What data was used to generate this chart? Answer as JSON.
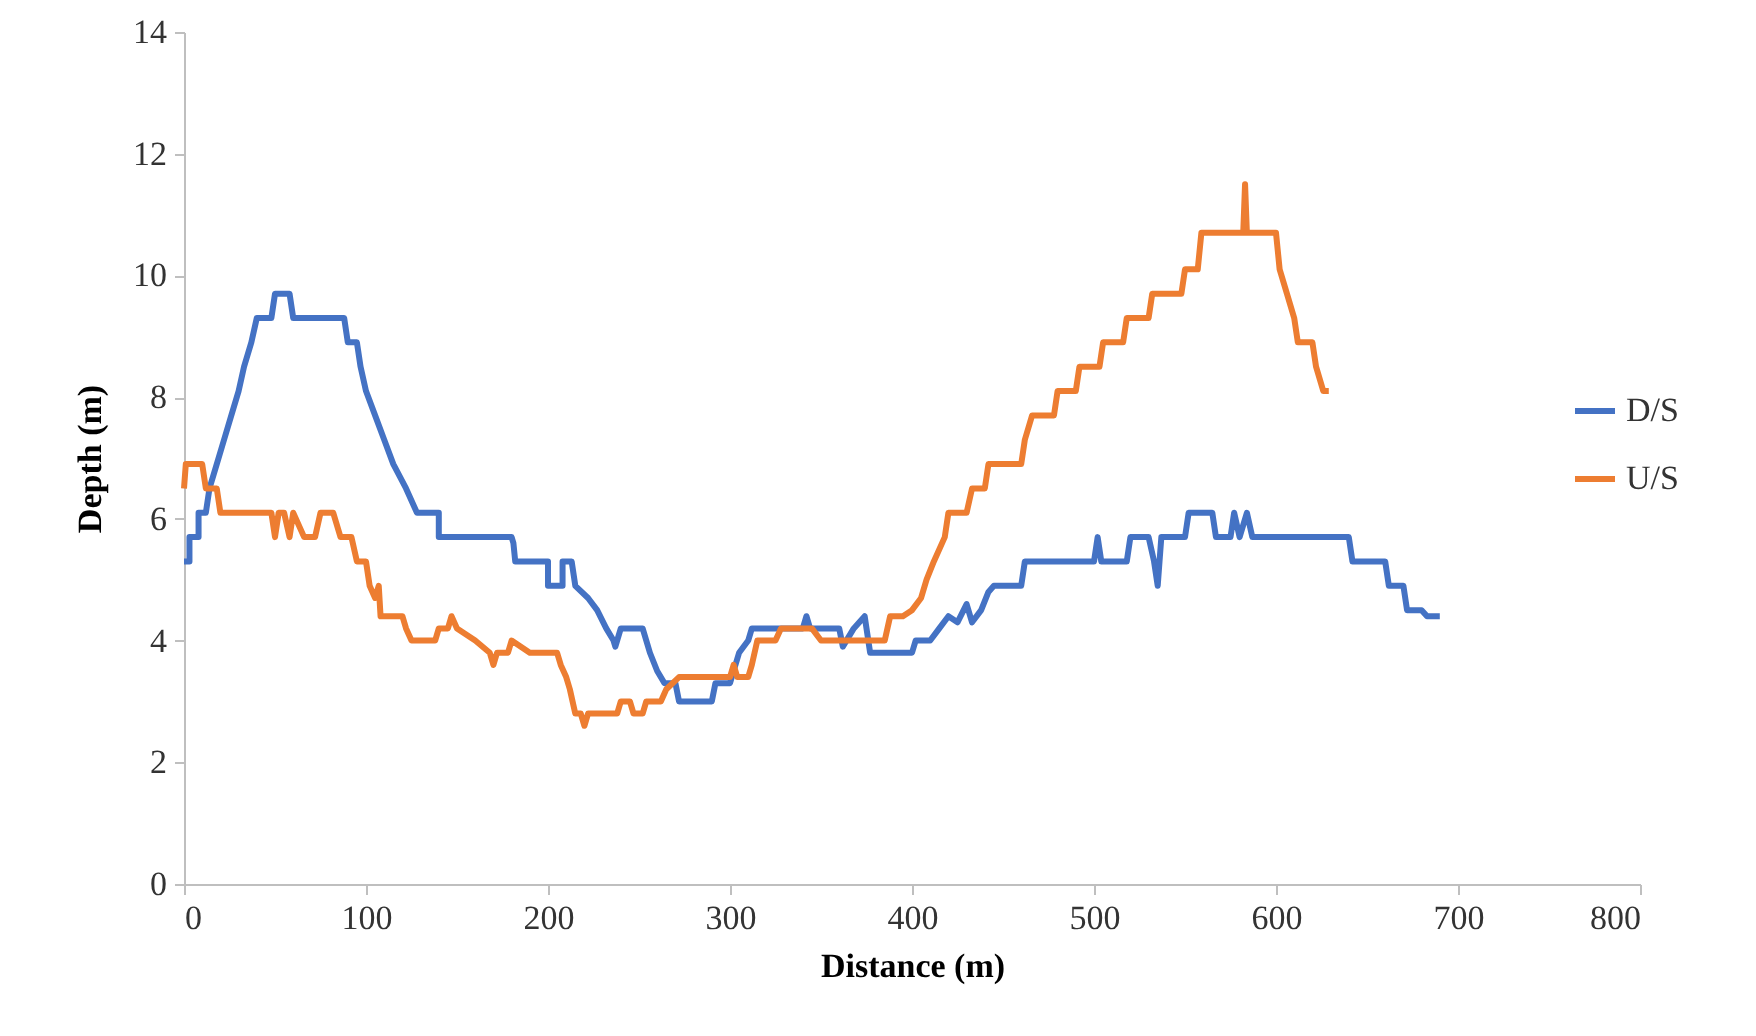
{
  "chart_data": {
    "type": "line",
    "xlabel": "Distance (m)",
    "ylabel": "Depth (m)",
    "xlim": [
      0,
      800
    ],
    "xticks": [
      0,
      100,
      200,
      300,
      400,
      500,
      600,
      700,
      800
    ],
    "ylim": [
      0,
      14
    ],
    "yticks": [
      0,
      2,
      4,
      6,
      8,
      10,
      12,
      14
    ],
    "grid": false,
    "legend": "right",
    "marker": "none",
    "line_style": "solid",
    "series": [
      {
        "name": "D/S",
        "color": "#4472c4",
        "x": [
          0,
          3,
          3,
          8,
          8,
          12,
          14,
          18,
          22,
          26,
          30,
          33,
          37,
          40,
          48,
          50,
          58,
          60,
          88,
          90,
          95,
          97,
          100,
          105,
          110,
          115,
          122,
          128,
          140,
          140,
          180,
          181,
          182,
          200,
          200,
          208,
          208,
          213,
          215,
          222,
          227,
          232,
          236,
          237,
          240,
          252,
          256,
          260,
          264,
          270,
          272,
          290,
          292,
          300,
          305,
          310,
          312,
          340,
          342,
          344,
          360,
          362,
          368,
          374,
          377,
          400,
          402,
          410,
          415,
          420,
          425,
          430,
          433,
          438,
          442,
          445,
          460,
          462,
          500,
          502,
          504,
          518,
          520,
          530,
          533,
          535,
          537,
          550,
          552,
          565,
          567,
          575,
          577,
          580,
          584,
          587,
          640,
          642,
          660,
          662,
          670,
          672,
          680,
          683,
          690
        ],
        "values": [
          5.3,
          5.3,
          5.7,
          5.7,
          6.1,
          6.1,
          6.5,
          6.9,
          7.3,
          7.7,
          8.1,
          8.5,
          8.9,
          9.3,
          9.3,
          9.7,
          9.7,
          9.3,
          9.3,
          8.9,
          8.9,
          8.5,
          8.1,
          7.7,
          7.3,
          6.9,
          6.5,
          6.1,
          6.1,
          5.7,
          5.7,
          5.6,
          5.3,
          5.3,
          4.9,
          4.9,
          5.3,
          5.3,
          4.9,
          4.7,
          4.5,
          4.2,
          4.0,
          3.9,
          4.2,
          4.2,
          3.8,
          3.5,
          3.3,
          3.3,
          3.0,
          3.0,
          3.3,
          3.3,
          3.8,
          4.0,
          4.2,
          4.2,
          4.4,
          4.2,
          4.2,
          3.9,
          4.2,
          4.4,
          3.8,
          3.8,
          4.0,
          4.0,
          4.2,
          4.4,
          4.3,
          4.6,
          4.3,
          4.5,
          4.8,
          4.9,
          4.9,
          5.3,
          5.3,
          5.7,
          5.3,
          5.3,
          5.7,
          5.7,
          5.3,
          4.9,
          5.7,
          5.7,
          6.1,
          6.1,
          5.7,
          5.7,
          6.1,
          5.7,
          6.1,
          5.7,
          5.7,
          5.3,
          5.3,
          4.9,
          4.9,
          4.5,
          4.5,
          4.4,
          4.4
        ]
      },
      {
        "name": "U/S",
        "color": "#ed7d31",
        "x": [
          0,
          1,
          10,
          12,
          18,
          20,
          48,
          50,
          52,
          55,
          58,
          60,
          66,
          72,
          75,
          82,
          86,
          92,
          95,
          100,
          102,
          105,
          107,
          108,
          120,
          122,
          125,
          138,
          140,
          145,
          147,
          150,
          160,
          168,
          170,
          172,
          178,
          180,
          190,
          205,
          207,
          210,
          212,
          215,
          218,
          220,
          222,
          238,
          240,
          245,
          247,
          252,
          254,
          262,
          265,
          272,
          300,
          302,
          304,
          310,
          312,
          315,
          325,
          328,
          345,
          350,
          385,
          388,
          395,
          400,
          405,
          408,
          412,
          418,
          420,
          430,
          433,
          440,
          442,
          460,
          462,
          466,
          478,
          480,
          490,
          492,
          503,
          505,
          516,
          518,
          530,
          532,
          548,
          550,
          557,
          559,
          582,
          583,
          584,
          600,
          602,
          606,
          610,
          612,
          620,
          622,
          626,
          629
        ],
        "values": [
          6.5,
          6.9,
          6.9,
          6.5,
          6.5,
          6.1,
          6.1,
          5.7,
          6.1,
          6.1,
          5.7,
          6.1,
          5.7,
          5.7,
          6.1,
          6.1,
          5.7,
          5.7,
          5.3,
          5.3,
          4.9,
          4.7,
          4.9,
          4.4,
          4.4,
          4.2,
          4.0,
          4.0,
          4.2,
          4.2,
          4.4,
          4.2,
          4.0,
          3.8,
          3.6,
          3.8,
          3.8,
          4.0,
          3.8,
          3.8,
          3.6,
          3.4,
          3.2,
          2.8,
          2.8,
          2.6,
          2.8,
          2.8,
          3.0,
          3.0,
          2.8,
          2.8,
          3.0,
          3.0,
          3.2,
          3.4,
          3.4,
          3.6,
          3.4,
          3.4,
          3.6,
          4.0,
          4.0,
          4.2,
          4.2,
          4.0,
          4.0,
          4.4,
          4.4,
          4.5,
          4.7,
          5.0,
          5.3,
          5.7,
          6.1,
          6.1,
          6.5,
          6.5,
          6.9,
          6.9,
          7.3,
          7.7,
          7.7,
          8.1,
          8.1,
          8.5,
          8.5,
          8.9,
          8.9,
          9.3,
          9.3,
          9.7,
          9.7,
          10.1,
          10.1,
          10.7,
          10.7,
          11.5,
          10.7,
          10.7,
          10.1,
          9.7,
          9.3,
          8.9,
          8.9,
          8.5,
          8.1,
          8.1
        ]
      }
    ]
  }
}
